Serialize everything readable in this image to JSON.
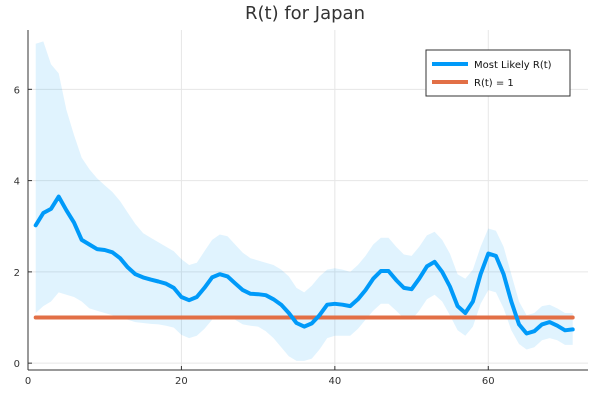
{
  "chart_data": {
    "type": "line",
    "title": "R(t) for Japan",
    "xlabel": "",
    "ylabel": "",
    "xlim": [
      0,
      73
    ],
    "ylim": [
      -0.15,
      7.3
    ],
    "xticks": [
      0,
      20,
      40,
      60
    ],
    "yticks": [
      0,
      2,
      4,
      6
    ],
    "grid": true,
    "legend_position": "top-right",
    "x": [
      1,
      2,
      3,
      4,
      5,
      6,
      7,
      8,
      9,
      10,
      11,
      12,
      13,
      14,
      15,
      16,
      17,
      18,
      19,
      20,
      21,
      22,
      23,
      24,
      25,
      26,
      27,
      28,
      29,
      30,
      31,
      32,
      33,
      34,
      35,
      36,
      37,
      38,
      39,
      40,
      41,
      42,
      43,
      44,
      45,
      46,
      47,
      48,
      49,
      50,
      51,
      52,
      53,
      54,
      55,
      56,
      57,
      58,
      59,
      60,
      61,
      62,
      63,
      64,
      65,
      66,
      67,
      68,
      69,
      70,
      71
    ],
    "series": [
      {
        "name": "Most Likely R(t)",
        "color": "#009AF9",
        "values": [
          3.02,
          3.29,
          3.38,
          3.65,
          3.35,
          3.08,
          2.7,
          2.6,
          2.5,
          2.48,
          2.43,
          2.3,
          2.1,
          1.95,
          1.88,
          1.83,
          1.79,
          1.74,
          1.65,
          1.45,
          1.38,
          1.45,
          1.65,
          1.88,
          1.95,
          1.9,
          1.75,
          1.6,
          1.52,
          1.51,
          1.49,
          1.4,
          1.28,
          1.1,
          0.88,
          0.8,
          0.87,
          1.05,
          1.28,
          1.3,
          1.28,
          1.25,
          1.4,
          1.6,
          1.85,
          2.02,
          2.02,
          1.82,
          1.65,
          1.62,
          1.85,
          2.12,
          2.22,
          2.0,
          1.68,
          1.25,
          1.1,
          1.35,
          1.95,
          2.4,
          2.35,
          1.95,
          1.35,
          0.85,
          0.65,
          0.7,
          0.85,
          0.9,
          0.82,
          0.72,
          0.74
        ]
      },
      {
        "name": "R(t) = 1",
        "color": "#E26F46",
        "values": [
          1,
          1,
          1,
          1,
          1,
          1,
          1,
          1,
          1,
          1,
          1,
          1,
          1,
          1,
          1,
          1,
          1,
          1,
          1,
          1,
          1,
          1,
          1,
          1,
          1,
          1,
          1,
          1,
          1,
          1,
          1,
          1,
          1,
          1,
          1,
          1,
          1,
          1,
          1,
          1,
          1,
          1,
          1,
          1,
          1,
          1,
          1,
          1,
          1,
          1,
          1,
          1,
          1,
          1,
          1,
          1,
          1,
          1,
          1,
          1,
          1,
          1,
          1,
          1,
          1,
          1,
          1,
          1,
          1,
          1,
          1
        ]
      }
    ],
    "band": {
      "series": "Most Likely R(t)",
      "color": "#009AF9",
      "lower": [
        1.1,
        1.25,
        1.35,
        1.55,
        1.5,
        1.45,
        1.35,
        1.2,
        1.15,
        1.1,
        1.05,
        1.0,
        0.95,
        0.9,
        0.88,
        0.86,
        0.85,
        0.82,
        0.78,
        0.62,
        0.55,
        0.6,
        0.75,
        0.95,
        1.05,
        1.02,
        0.95,
        0.85,
        0.82,
        0.8,
        0.7,
        0.55,
        0.35,
        0.15,
        0.05,
        0.05,
        0.1,
        0.3,
        0.55,
        0.6,
        0.6,
        0.6,
        0.75,
        0.95,
        1.15,
        1.3,
        1.3,
        1.15,
        0.98,
        0.95,
        1.15,
        1.4,
        1.5,
        1.35,
        1.05,
        0.72,
        0.6,
        0.8,
        1.3,
        1.6,
        1.55,
        1.2,
        0.72,
        0.42,
        0.3,
        0.35,
        0.5,
        0.55,
        0.5,
        0.4,
        0.4
      ],
      "upper": [
        7.0,
        7.05,
        6.55,
        6.35,
        5.55,
        5.0,
        4.5,
        4.25,
        4.05,
        3.9,
        3.75,
        3.55,
        3.3,
        3.05,
        2.85,
        2.75,
        2.65,
        2.55,
        2.45,
        2.28,
        2.15,
        2.2,
        2.45,
        2.7,
        2.82,
        2.78,
        2.6,
        2.42,
        2.3,
        2.25,
        2.2,
        2.15,
        2.05,
        1.9,
        1.65,
        1.55,
        1.7,
        1.9,
        2.05,
        2.08,
        2.05,
        2.0,
        2.15,
        2.35,
        2.6,
        2.75,
        2.75,
        2.55,
        2.38,
        2.35,
        2.55,
        2.8,
        2.88,
        2.7,
        2.4,
        1.95,
        1.85,
        2.05,
        2.55,
        2.95,
        2.9,
        2.55,
        1.95,
        1.35,
        1.05,
        1.1,
        1.25,
        1.28,
        1.2,
        1.1,
        1.1
      ]
    }
  }
}
